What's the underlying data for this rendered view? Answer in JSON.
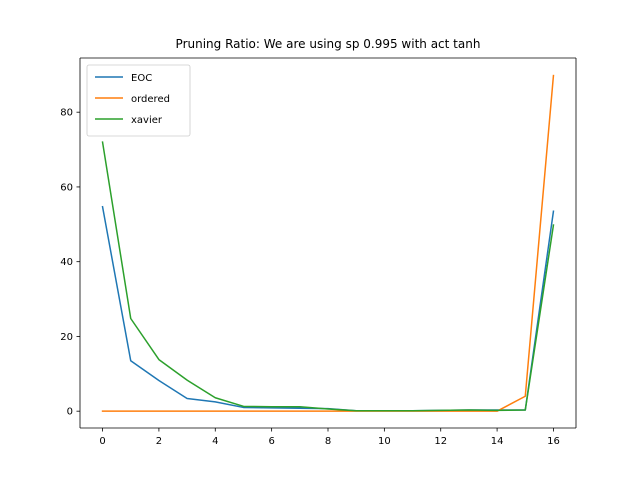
{
  "chart_data": {
    "type": "line",
    "title": "Pruning Ratio: We are using sp 0.995 with act tanh",
    "xlabel": "",
    "ylabel": "",
    "x": [
      0,
      1,
      2,
      3,
      4,
      5,
      6,
      7,
      8,
      9,
      10,
      11,
      12,
      13,
      14,
      15,
      16
    ],
    "xlim": [
      -0.8,
      16.8
    ],
    "ylim": [
      -4.5,
      94.5
    ],
    "xticks": [
      0,
      2,
      4,
      6,
      8,
      10,
      12,
      14,
      16
    ],
    "yticks": [
      0,
      20,
      40,
      60,
      80
    ],
    "grid": false,
    "legend_position": "upper-left",
    "series": [
      {
        "name": "EOC",
        "color": "#1f77b4",
        "values": [
          54.7,
          13.5,
          8.2,
          3.4,
          2.5,
          1.0,
          0.9,
          0.8,
          0.7,
          0.1,
          0.1,
          0.1,
          0.2,
          0.3,
          0.3,
          0.3,
          53.5
        ]
      },
      {
        "name": "ordered",
        "color": "#ff7f0e",
        "values": [
          0,
          0,
          0,
          0,
          0,
          0,
          0,
          0,
          0,
          0,
          0,
          0,
          0,
          0,
          0,
          4.0,
          89.8
        ]
      },
      {
        "name": "xavier",
        "color": "#2ca02c",
        "values": [
          72.0,
          24.8,
          13.8,
          8.3,
          3.6,
          1.3,
          1.2,
          1.2,
          0.6,
          0.1,
          0.1,
          0.1,
          0.2,
          0.3,
          0.2,
          0.3,
          49.8
        ]
      }
    ]
  }
}
